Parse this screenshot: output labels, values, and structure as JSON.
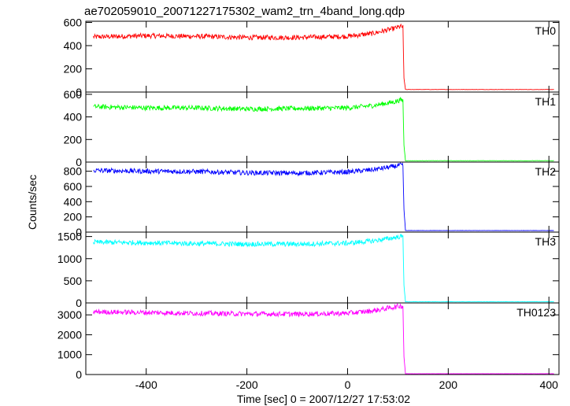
{
  "chart_data": {
    "type": "line",
    "title": "ae702059010_20071227175302_wam2_trn_4band_long.qdp",
    "xlabel": "Time [sec] 0 = 2007/12/27 17:53:02",
    "ylabel": "Counts/sec",
    "xlim": [
      -520,
      420
    ],
    "xticks": [
      -400,
      -200,
      0,
      200,
      400
    ],
    "grid": false,
    "panels": [
      {
        "name": "TH0",
        "color": "#ff0000",
        "ylim": [
          0,
          610
        ],
        "yticks": [
          0,
          200,
          400,
          600
        ],
        "x": [
          -500,
          -400,
          -300,
          -200,
          -100,
          0,
          50,
          90,
          105,
          110,
          112,
          115,
          200,
          300,
          410
        ],
        "y": [
          475,
          485,
          480,
          470,
          470,
          480,
          505,
          545,
          565,
          560,
          120,
          22,
          22,
          22,
          22
        ]
      },
      {
        "name": "TH1",
        "color": "#00ff00",
        "ylim": [
          0,
          620
        ],
        "yticks": [
          0,
          200,
          400,
          600
        ],
        "x": [
          -500,
          -400,
          -300,
          -200,
          -100,
          0,
          50,
          90,
          105,
          110,
          112,
          115,
          200,
          300,
          410
        ],
        "y": [
          490,
          480,
          480,
          470,
          475,
          480,
          500,
          530,
          550,
          545,
          150,
          12,
          12,
          12,
          12
        ]
      },
      {
        "name": "TH2",
        "color": "#0000ff",
        "ylim": [
          0,
          920
        ],
        "yticks": [
          0,
          200,
          400,
          600,
          800
        ],
        "x": [
          -500,
          -400,
          -300,
          -200,
          -100,
          0,
          50,
          90,
          105,
          110,
          112,
          115,
          200,
          300,
          410
        ],
        "y": [
          810,
          800,
          795,
          780,
          775,
          790,
          820,
          860,
          880,
          870,
          300,
          20,
          20,
          20,
          20
        ]
      },
      {
        "name": "TH3",
        "color": "#00ffff",
        "ylim": [
          0,
          1600
        ],
        "yticks": [
          0,
          500,
          1000,
          1500
        ],
        "x": [
          -500,
          -400,
          -300,
          -200,
          -100,
          0,
          50,
          90,
          105,
          110,
          112,
          115,
          200,
          300,
          410
        ],
        "y": [
          1370,
          1360,
          1340,
          1330,
          1330,
          1350,
          1400,
          1470,
          1500,
          1490,
          400,
          25,
          25,
          25,
          25
        ]
      },
      {
        "name": "TH0123",
        "color": "#ff00ff",
        "ylim": [
          0,
          3600
        ],
        "yticks": [
          0,
          1000,
          2000,
          3000
        ],
        "x": [
          -500,
          -400,
          -300,
          -200,
          -100,
          0,
          50,
          90,
          105,
          110,
          112,
          115,
          200,
          300,
          410
        ],
        "y": [
          3150,
          3120,
          3080,
          3050,
          3040,
          3080,
          3200,
          3380,
          3450,
          3430,
          900,
          40,
          40,
          40,
          40
        ]
      }
    ]
  }
}
